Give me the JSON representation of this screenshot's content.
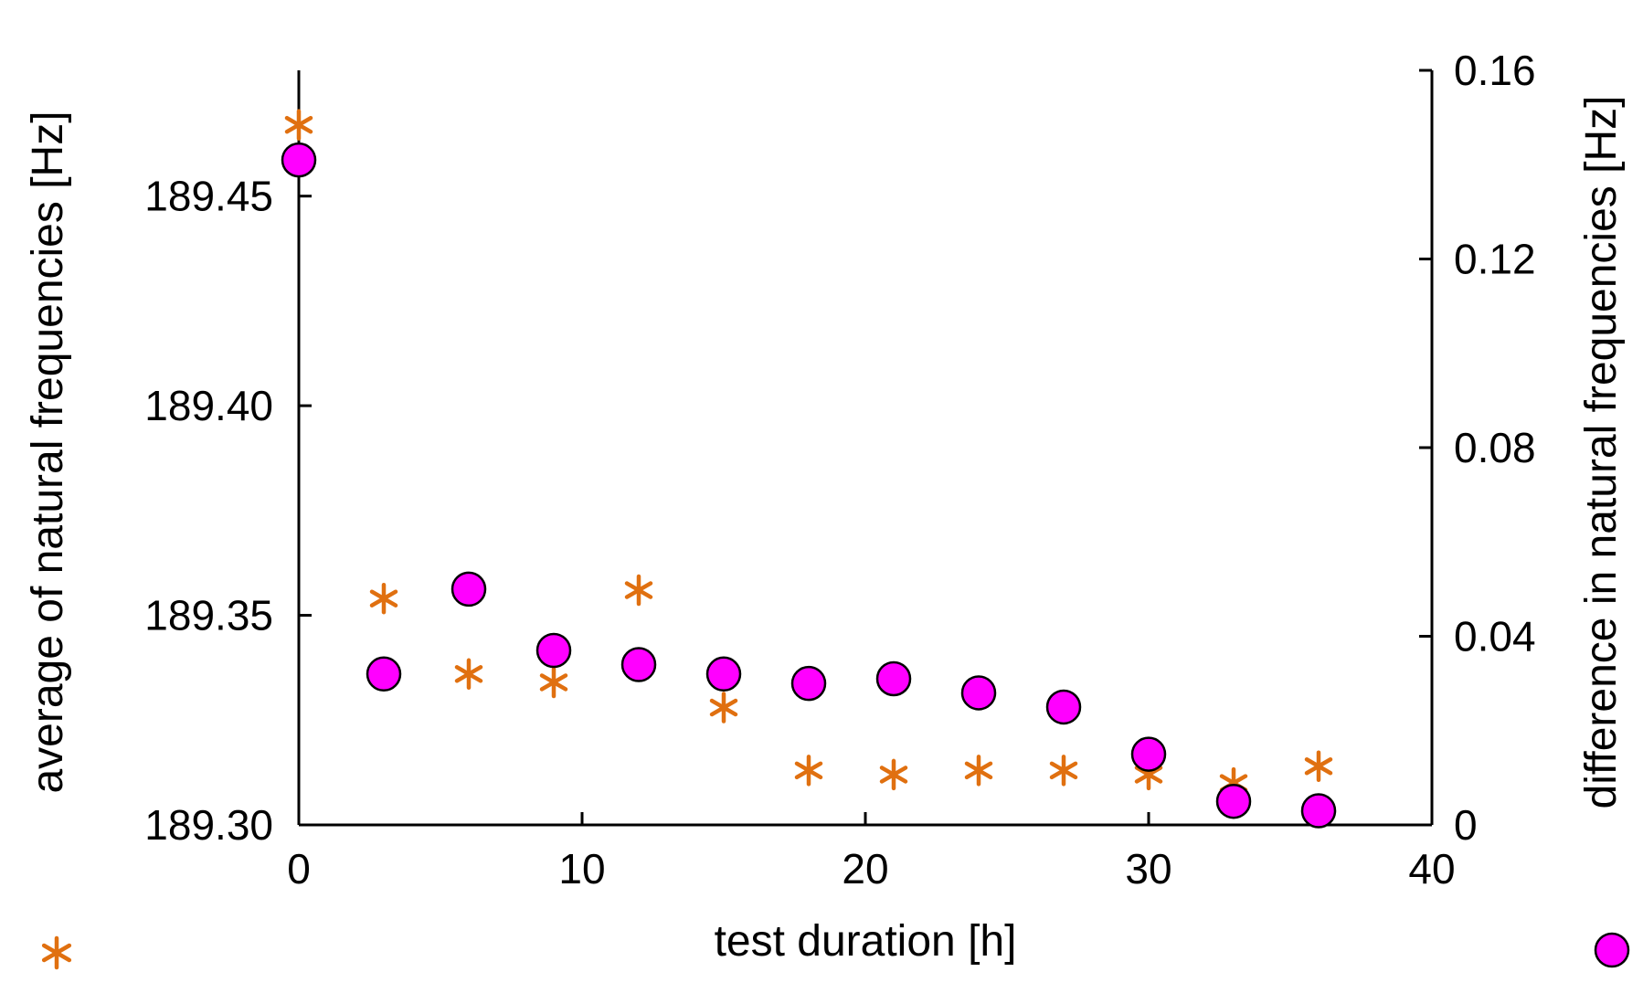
{
  "chart_data": {
    "type": "scatter",
    "title": "",
    "xlabel": "test duration [h]",
    "ylabel_left": "average of natural frequencies [Hz]",
    "ylabel_right": "difference in natural frequencies [Hz]",
    "x_ticks": [
      "0",
      "10",
      "20",
      "30",
      "40"
    ],
    "y_left_ticks": [
      "189.30",
      "189.35",
      "189.40",
      "189.45"
    ],
    "y_right_ticks": [
      "0",
      "0.04",
      "0.08",
      "0.12",
      "0.16"
    ],
    "xlim": [
      0,
      40
    ],
    "ylim_left": [
      189.3,
      189.48
    ],
    "ylim_right": [
      0,
      0.16
    ],
    "grid": false,
    "series": [
      {
        "name": "average of natural frequencies",
        "axis": "left",
        "marker": "asterisk",
        "color": "#E07010",
        "legend_symbol": "*",
        "x": [
          0,
          3,
          6,
          9,
          12,
          15,
          18,
          21,
          24,
          27,
          30,
          33,
          36
        ],
        "y": [
          189.467,
          189.354,
          189.336,
          189.334,
          189.356,
          189.328,
          189.313,
          189.312,
          189.313,
          189.313,
          189.312,
          189.31,
          189.314
        ]
      },
      {
        "name": "difference in natural frequencies",
        "axis": "right",
        "marker": "circle",
        "color": "#FF00FF",
        "legend_symbol": "●",
        "x": [
          0,
          3,
          6,
          9,
          12,
          15,
          18,
          21,
          24,
          27,
          30,
          33,
          36
        ],
        "y": [
          0.141,
          0.032,
          0.05,
          0.037,
          0.034,
          0.032,
          0.03,
          0.031,
          0.028,
          0.025,
          0.015,
          0.005,
          0.003
        ]
      }
    ]
  }
}
